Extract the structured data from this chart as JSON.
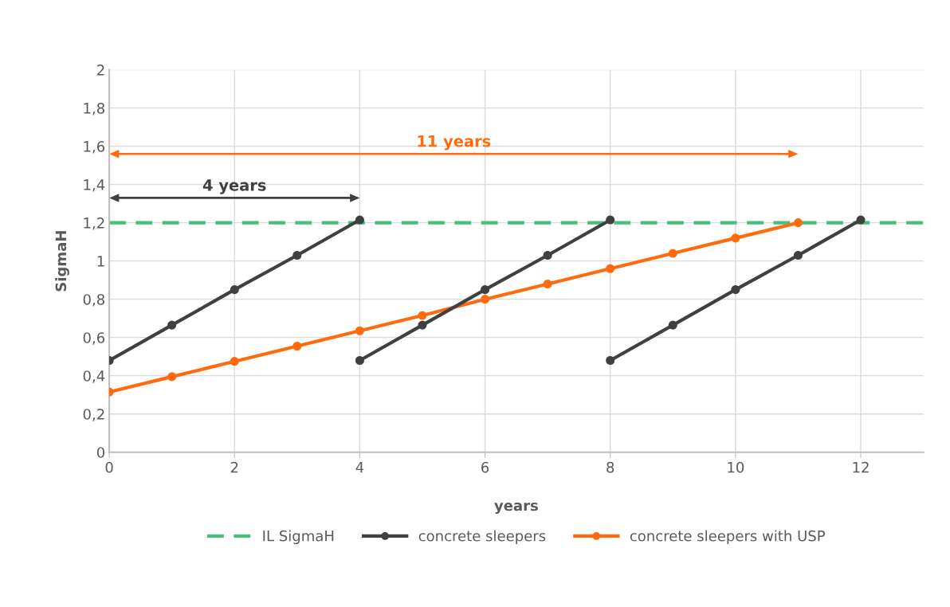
{
  "chart_data": {
    "type": "line",
    "xlabel": "years",
    "ylabel": "SigmaH",
    "xlim": [
      0,
      13
    ],
    "xticks": [
      0,
      2,
      4,
      6,
      8,
      10,
      12
    ],
    "ylim": [
      0,
      2
    ],
    "yticks": [
      0,
      {
        "value": 0.2,
        "label": "0,2"
      },
      {
        "value": 0.4,
        "label": "0,4"
      },
      {
        "value": 0.6,
        "label": "0,6"
      },
      {
        "value": 0.8,
        "label": "0,8"
      },
      1,
      {
        "value": 1.2,
        "label": "1,2"
      },
      {
        "value": 1.4,
        "label": "1,4"
      },
      {
        "value": 1.6,
        "label": "1,6"
      },
      {
        "value": 1.8,
        "label": "1,8"
      },
      2
    ],
    "grid": true,
    "legend": "bottom",
    "marker": "circle",
    "line_style": "solid",
    "ref_lines": [
      {
        "axis": "y",
        "value": 1.2,
        "label": "IL SigmaH",
        "color": "#45c07a",
        "line_style": "dashed"
      }
    ],
    "series": [
      {
        "name": "concrete sleepers",
        "color": "#404040",
        "x": [
          0,
          1,
          2,
          3,
          4
        ],
        "values": [
          0.48,
          0.665,
          0.85,
          1.03,
          1.215
        ]
      },
      {
        "name": "concrete sleepers with USP",
        "color": "#ff6a0d",
        "x": [
          0,
          1,
          2,
          3,
          4,
          5,
          6,
          7,
          8,
          9,
          10,
          11
        ],
        "values": [
          0.315,
          0.395,
          0.475,
          0.555,
          0.635,
          0.715,
          0.8,
          0.88,
          0.96,
          1.04,
          1.12,
          1.2
        ]
      },
      {
        "color": "#404040",
        "x": [
          4,
          5,
          6,
          7,
          8
        ],
        "values": [
          0.48,
          0.665,
          0.85,
          1.03,
          1.215
        ]
      },
      {
        "color": "#404040",
        "x": [
          8,
          9,
          10,
          11,
          12
        ],
        "values": [
          0.48,
          0.665,
          0.85,
          1.03,
          1.215
        ]
      }
    ],
    "annotations": [
      "4 years",
      "11 years"
    ]
  }
}
